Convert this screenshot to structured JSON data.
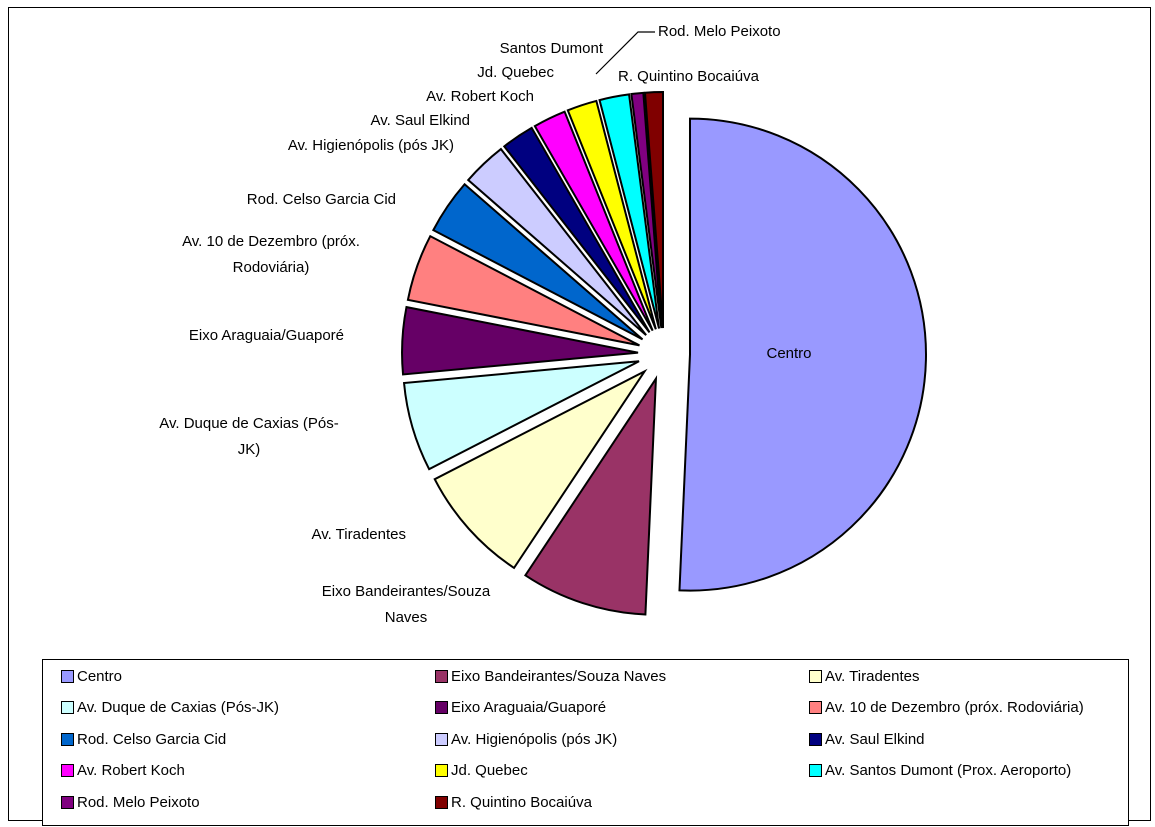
{
  "chart_data": {
    "type": "pie",
    "exploded": true,
    "slices": [
      {
        "label": "Centro",
        "legend": "Centro",
        "value": 50.0,
        "color": "#9999FF"
      },
      {
        "label": "Eixo Bandeirantes/Souza Naves",
        "legend": "Eixo Bandeirantes/Souza Naves",
        "value": 8.5,
        "color": "#993366"
      },
      {
        "label": "Av. Tiradentes",
        "legend": "Av. Tiradentes",
        "value": 8.0,
        "color": "#FFFFCC"
      },
      {
        "label": "Av. Duque de Caxias (Pós-JK)",
        "legend": "Av. Duque de Caxias (Pós-JK)",
        "value": 6.0,
        "color": "#CCFFFF"
      },
      {
        "label": "Eixo Araguaia/Guaporé",
        "legend": "Eixo Araguaia/Guaporé",
        "value": 4.5,
        "color": "#660066"
      },
      {
        "label": "Av. 10 de Dezembro (próx. Rodoviária)",
        "legend": "Av. 10 de Dezembro (próx. Rodoviária)",
        "value": 4.5,
        "color": "#FF8080"
      },
      {
        "label": "Rod. Celso Garcia Cid",
        "legend": "Rod. Celso Garcia Cid",
        "value": 3.7,
        "color": "#0066CC"
      },
      {
        "label": "Av. Higienópolis (pós JK)",
        "legend": "Av. Higienópolis (pós JK)",
        "value": 3.0,
        "color": "#CCCCFF"
      },
      {
        "label": "Av. Saul Elkind",
        "legend": "Av. Saul Elkind",
        "value": 2.2,
        "color": "#000080"
      },
      {
        "label": "Av. Robert Koch",
        "legend": "Av. Robert Koch",
        "value": 2.2,
        "color": "#FF00FF"
      },
      {
        "label": "Jd. Quebec",
        "legend": "Jd. Quebec",
        "value": 2.0,
        "color": "#FFFF00"
      },
      {
        "label": "Santos Dumont",
        "legend": "Av. Santos Dumont (Prox. Aeroporto)",
        "value": 2.0,
        "color": "#00FFFF"
      },
      {
        "label": "Rod. Melo Peixoto",
        "legend": "Rod. Melo Peixoto",
        "value": 0.8,
        "color": "#800080"
      },
      {
        "label": "R. Quintino Bocaiúva",
        "legend": "R. Quintino Bocaiúva",
        "value": 1.2,
        "color": "#800000"
      }
    ]
  }
}
